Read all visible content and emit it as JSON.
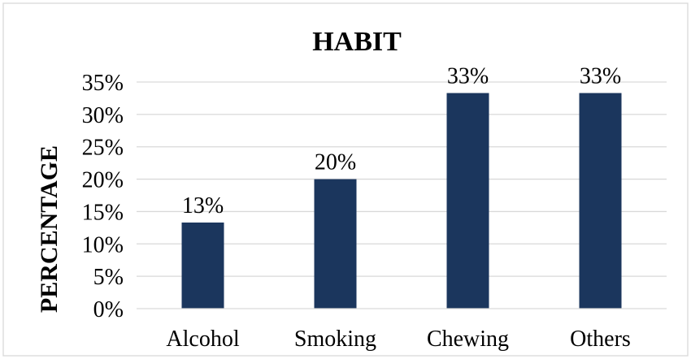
{
  "chart_data": {
    "type": "bar",
    "title": "HABIT",
    "xlabel": "",
    "ylabel": "PERCENTAGE",
    "categories": [
      "Alcohol",
      "Smoking",
      "Chewing",
      "Others"
    ],
    "values": [
      13.3,
      20,
      33.3,
      33.3
    ],
    "data_labels": [
      "13%",
      "20%",
      "33%",
      "33%"
    ],
    "ylim": [
      0,
      35
    ],
    "yticks": [
      0,
      5,
      10,
      15,
      20,
      25,
      30,
      35
    ],
    "ytick_labels": [
      "0%",
      "5%",
      "10%",
      "15%",
      "20%",
      "25%",
      "30%",
      "35%"
    ],
    "grid": true,
    "legend": "none",
    "bar_color": "#1b365d"
  }
}
